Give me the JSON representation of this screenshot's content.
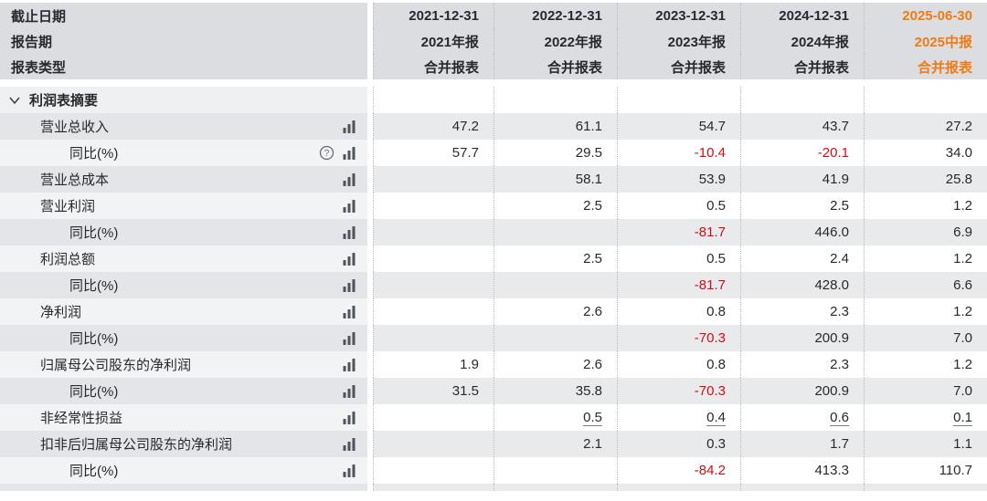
{
  "table": {
    "header": {
      "row_labels": [
        "截止日期",
        "报告期",
        "报表类型"
      ],
      "columns": [
        {
          "date": "2021-12-31",
          "period": "2021年报",
          "type": "合并报表",
          "highlight": false
        },
        {
          "date": "2022-12-31",
          "period": "2022年报",
          "type": "合并报表",
          "highlight": false
        },
        {
          "date": "2023-12-31",
          "period": "2023年报",
          "type": "合并报表",
          "highlight": false
        },
        {
          "date": "2024-12-31",
          "period": "2024年报",
          "type": "合并报表",
          "highlight": false
        },
        {
          "date": "2025-06-30",
          "period": "2025中报",
          "type": "合并报表",
          "highlight": true
        }
      ]
    },
    "section": {
      "title": "利润表摘要"
    },
    "rows": [
      {
        "label": "营业总收入",
        "indent": 1,
        "stripe": "gray",
        "has_help": false,
        "underline": false,
        "values": [
          "47.2",
          "61.1",
          "54.7",
          "43.7",
          "27.2"
        ]
      },
      {
        "label": "同比(%)",
        "indent": 2,
        "stripe": "light",
        "has_help": true,
        "underline": false,
        "values": [
          "57.7",
          "29.5",
          "-10.4",
          "-20.1",
          "34.0"
        ]
      },
      {
        "label": "营业总成本",
        "indent": 1,
        "stripe": "gray",
        "has_help": false,
        "underline": false,
        "values": [
          "",
          "58.1",
          "53.9",
          "41.9",
          "25.8"
        ]
      },
      {
        "label": "营业利润",
        "indent": 1,
        "stripe": "light",
        "has_help": false,
        "underline": false,
        "values": [
          "",
          "2.5",
          "0.5",
          "2.5",
          "1.2"
        ]
      },
      {
        "label": "同比(%)",
        "indent": 2,
        "stripe": "gray",
        "has_help": false,
        "underline": false,
        "values": [
          "",
          "",
          "-81.7",
          "446.0",
          "6.9"
        ]
      },
      {
        "label": "利润总额",
        "indent": 1,
        "stripe": "light",
        "has_help": false,
        "underline": false,
        "values": [
          "",
          "2.5",
          "0.5",
          "2.4",
          "1.2"
        ]
      },
      {
        "label": "同比(%)",
        "indent": 2,
        "stripe": "gray",
        "has_help": false,
        "underline": false,
        "values": [
          "",
          "",
          "-81.7",
          "428.0",
          "6.6"
        ]
      },
      {
        "label": "净利润",
        "indent": 1,
        "stripe": "light",
        "has_help": false,
        "underline": false,
        "values": [
          "",
          "2.6",
          "0.8",
          "2.3",
          "1.2"
        ]
      },
      {
        "label": "同比(%)",
        "indent": 2,
        "stripe": "gray",
        "has_help": false,
        "underline": false,
        "values": [
          "",
          "",
          "-70.3",
          "200.9",
          "7.0"
        ]
      },
      {
        "label": "归属母公司股东的净利润",
        "indent": 1,
        "stripe": "light",
        "has_help": false,
        "underline": false,
        "values": [
          "1.9",
          "2.6",
          "0.8",
          "2.3",
          "1.2"
        ]
      },
      {
        "label": "同比(%)",
        "indent": 2,
        "stripe": "gray",
        "has_help": false,
        "underline": false,
        "values": [
          "31.5",
          "35.8",
          "-70.3",
          "200.9",
          "7.0"
        ]
      },
      {
        "label": "非经常性损益",
        "indent": 1,
        "stripe": "light",
        "has_help": false,
        "underline": true,
        "values": [
          "",
          "0.5",
          "0.4",
          "0.6",
          "0.1"
        ]
      },
      {
        "label": "扣非后归属母公司股东的净利润",
        "indent": 1,
        "stripe": "gray",
        "has_help": false,
        "underline": false,
        "values": [
          "",
          "2.1",
          "0.3",
          "1.7",
          "1.1"
        ]
      },
      {
        "label": "同比(%)",
        "indent": 2,
        "stripe": "light",
        "has_help": false,
        "underline": false,
        "values": [
          "",
          "",
          "-84.2",
          "413.3",
          "110.7"
        ]
      }
    ],
    "colors": {
      "accent_orange": "#ee7c15",
      "negative_red": "#d40d10",
      "icon_gray": "#4e545c",
      "help_gray": "#666b73"
    },
    "icons": {
      "chart": "bar-chart-icon",
      "help": "help-circle-icon",
      "collapse": "chevron-down-icon"
    }
  }
}
